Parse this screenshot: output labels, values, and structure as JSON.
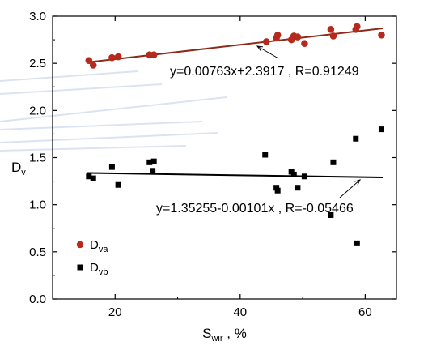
{
  "chart_data": {
    "type": "scatter",
    "title": "",
    "xlabel": "S",
    "xlabel_sub": "wir",
    "xlabel_suffix": " , %",
    "ylabel": "D",
    "ylabel_sub": "v",
    "xlim": [
      10,
      65
    ],
    "ylim": [
      0.0,
      3.0
    ],
    "xticks": [
      20,
      40,
      60
    ],
    "yticks": [
      0.0,
      0.5,
      1.0,
      1.5,
      2.0,
      2.5,
      3.0
    ],
    "ytick_labels": [
      "0.0",
      "0.5",
      "1.0",
      "1.5",
      "2.0",
      "2.5",
      "3.0"
    ],
    "grid": false,
    "legend_position": "bottom-left",
    "series": [
      {
        "name": "D",
        "name_sub": "va",
        "marker": "circle",
        "color": "#b52a1c",
        "x": [
          15.8,
          16.5,
          19.5,
          20.5,
          25.5,
          26.2,
          44.2,
          45.8,
          46.0,
          48.2,
          48.6,
          49.2,
          50.3,
          54.5,
          54.9,
          58.5,
          58.7,
          62.6
        ],
        "y": [
          2.53,
          2.48,
          2.56,
          2.57,
          2.59,
          2.59,
          2.73,
          2.77,
          2.8,
          2.75,
          2.79,
          2.78,
          2.71,
          2.86,
          2.79,
          2.86,
          2.89,
          2.8
        ],
        "fit": {
          "slope": 0.00763,
          "intercept": 2.3917,
          "x_range": [
            15.5,
            62.8
          ],
          "color": "#8b2a1a"
        }
      },
      {
        "name": "D",
        "name_sub": "vb",
        "marker": "square",
        "color": "#000000",
        "x": [
          15.8,
          16.5,
          19.5,
          20.5,
          25.5,
          26.2,
          26.0,
          44.0,
          45.8,
          46.0,
          48.2,
          48.6,
          49.2,
          50.3,
          54.5,
          54.9,
          58.5,
          58.7,
          62.6
        ],
        "y": [
          1.3,
          1.28,
          1.4,
          1.21,
          1.45,
          1.46,
          1.36,
          1.53,
          1.18,
          1.15,
          1.35,
          1.32,
          1.18,
          1.3,
          0.89,
          1.45,
          1.7,
          0.59,
          1.8
        ],
        "fit": {
          "slope": -0.00101,
          "intercept": 1.35255,
          "x_range": [
            15.5,
            62.8
          ],
          "color": "#000000"
        }
      }
    ],
    "annotations": [
      {
        "text": "y=0.00763x+2.3917 , R=0.91249",
        "color": "#a0281a",
        "series": 0
      },
      {
        "text": "y=1.35255-0.00101x , R=-0.05466",
        "color": "#000000",
        "series": 1
      }
    ]
  }
}
